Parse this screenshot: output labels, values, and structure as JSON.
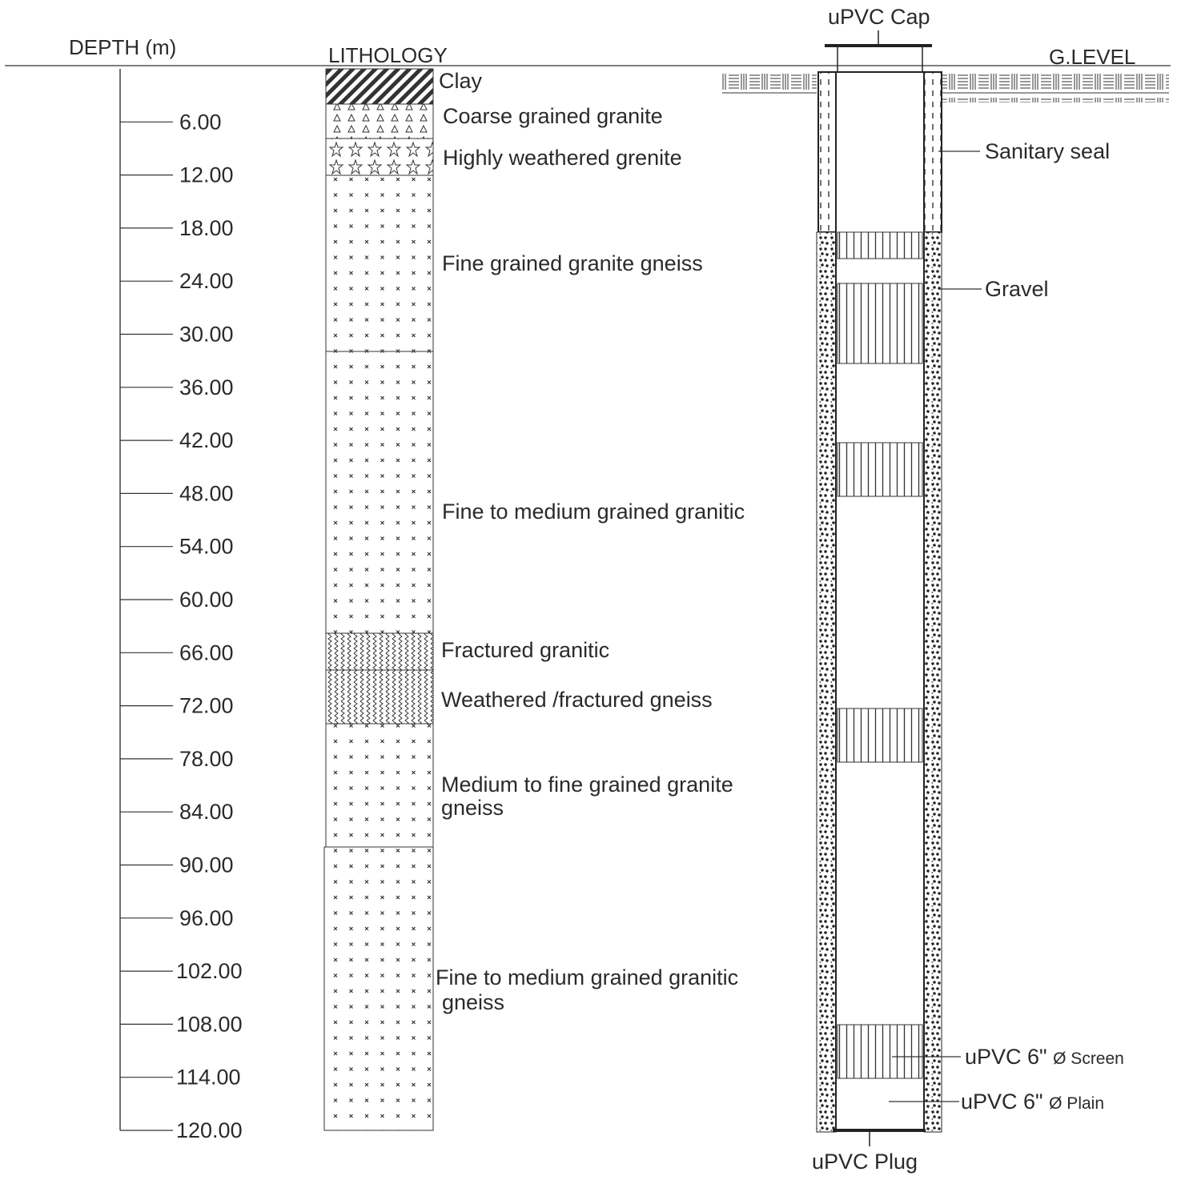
{
  "headers": {
    "depth": "DEPTH (m)",
    "lithology": "LITHOLOGY",
    "ground_level": "G.LEVEL"
  },
  "depth_ticks": [
    "6.00",
    "12.00",
    "18.00",
    "24.00",
    "30.00",
    "36.00",
    "42.00",
    "48.00",
    "54.00",
    "60.00",
    "66.00",
    "72.00",
    "78.00",
    "84.00",
    "90.00",
    "96.00",
    "102.00",
    "108.00",
    "114.00",
    "120.00"
  ],
  "layers": [
    {
      "label": "Clay",
      "pattern": "hatch"
    },
    {
      "label": "Coarse grained granite",
      "pattern": "triangles"
    },
    {
      "label": "Highly weathered grenite",
      "pattern": "stars"
    },
    {
      "label": "Fine grained granite gneiss",
      "pattern": "crosses"
    },
    {
      "label": "Fine to medium grained granitic",
      "pattern": "crosses"
    },
    {
      "label": "Fractured granitic",
      "pattern": "zigzag"
    },
    {
      "label": "Weathered /fractured gneiss",
      "pattern": "zigzag"
    },
    {
      "label_line1": "Medium to fine grained granite",
      "label_line2": "gneiss",
      "pattern": "crosses"
    },
    {
      "label_line1": "Fine to medium grained granitic",
      "label_line2": "gneiss",
      "pattern": "crosses"
    }
  ],
  "well": {
    "cap": "uPVC Cap",
    "plug": "uPVC Plug",
    "sanitary_seal": "Sanitary seal",
    "gravel": "Gravel",
    "screen_prefix": "uPVC 6\" ",
    "screen_suffix": "Ø Screen",
    "plain_prefix": "uPVC 6\" ",
    "plain_suffix": "Ø Plain"
  }
}
